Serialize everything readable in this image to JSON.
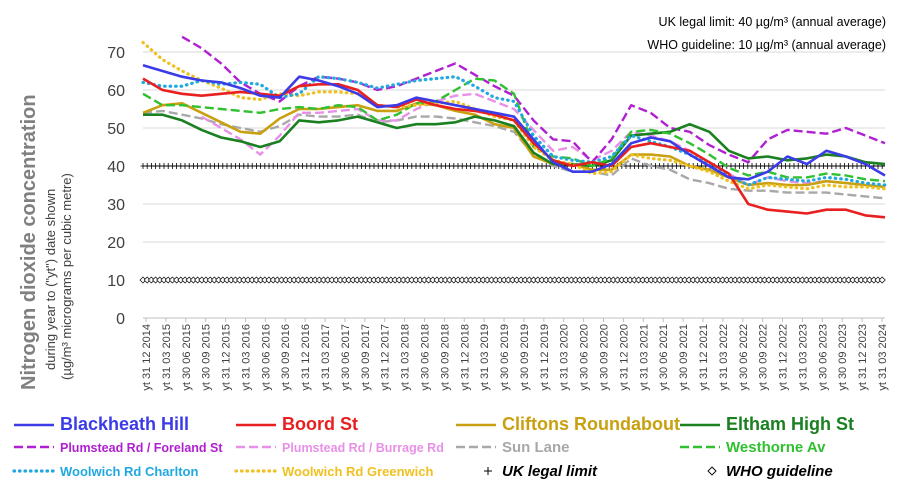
{
  "annotations": {
    "uk_limit": "UK legal limit:  40 µg/m³  (annual average)",
    "who_guideline": "WHO guideline:  10 µg/m³  (annual average)"
  },
  "chart_data": {
    "type": "line",
    "title": "",
    "ylabel_main": "Nitrogen dioxide concentration",
    "ylabel_sub1": "during year to (\"yt\") date shown",
    "ylabel_sub2": "(µg/m³ micrograms per cubic metre)",
    "xlabel": "",
    "ylim": [
      0,
      75
    ],
    "yticks": [
      0,
      10,
      20,
      30,
      40,
      50,
      60,
      70
    ],
    "grid": "horizontal",
    "legend_position": "bottom",
    "x_start": "31 12 2014",
    "x_end": "30 06 2024",
    "x_tick_labels": [
      "yt 31 12 2014",
      "yt 31 03 2015",
      "yt 30 06 2015",
      "yt 30 09 2015",
      "yt 31 12 2015",
      "yt 31 03 2016",
      "yt 30 06 2016",
      "yt 30 09 2016",
      "yt 31 12 2016",
      "yt 31 03 2017",
      "yt 30 06 2017",
      "yt 30 09 2017",
      "yt 31 12 2017",
      "yt 31 03 2018",
      "yt 30 06 2018",
      "yt 30 09 2018",
      "yt 31 12 2018",
      "yt 31 03 2019",
      "yt 30 06 2019",
      "yt 30 09 2019",
      "yt 31 12 2019",
      "yt 31 03 2020",
      "yt 30 06 2020",
      "yt 30 09 2020",
      "yt 31 12 2020",
      "yt 31 03 2021",
      "yt 30 06 2021",
      "yt 30 09 2021",
      "yt 31 12 2021",
      "yt 31 03 2022",
      "yt 30 06 2022",
      "yt 30 09 2022",
      "yt 31 12 2022",
      "yt 31 03 2023",
      "yt 30 06 2023",
      "yt 30 09 2023",
      "yt 31 12 2023",
      "yt 31 03 2024"
    ],
    "series": [
      {
        "name": "Blackheath Hill",
        "color": "#3B3BE8",
        "style": "solid",
        "legend_color": "#3B3BE8",
        "values": [
          66.5,
          65,
          63.5,
          62.5,
          62,
          60.5,
          58.5,
          58,
          63.5,
          62.5,
          61,
          59,
          55.5,
          56,
          58,
          57,
          56,
          55,
          54,
          53,
          47,
          41,
          38.5,
          38.5,
          40.5,
          46,
          47.5,
          46.5,
          43,
          40,
          37,
          36.5,
          38.5,
          42.5,
          40.5,
          44,
          42.5,
          40.5,
          37.5
        ]
      },
      {
        "name": "Boord St",
        "color": "#E82020",
        "style": "solid",
        "legend_color": "#E82020",
        "values": [
          63,
          60,
          59,
          58.5,
          59,
          59.5,
          59,
          58.5,
          61,
          61.5,
          61.5,
          60,
          56,
          55.5,
          57.5,
          56,
          55,
          54.5,
          53.5,
          52,
          46,
          41.5,
          40,
          41,
          40,
          45,
          46,
          45,
          44,
          41,
          38,
          30,
          28.5,
          28,
          27.5,
          28.5,
          28.5,
          27,
          26.5
        ]
      },
      {
        "name": "Cliftons Roundabout",
        "color": "#C8A010",
        "style": "solid",
        "legend_color": "#C8A010",
        "values": [
          54,
          56,
          56.5,
          54,
          51.5,
          49,
          48.5,
          52.5,
          55,
          55,
          55.5,
          56,
          54.5,
          54.5,
          56.5,
          56,
          54.5,
          53.5,
          51,
          50,
          42.5,
          40.5,
          40.5,
          39,
          39,
          43,
          43,
          42.5,
          40,
          39,
          37,
          35,
          35.5,
          35,
          35,
          36,
          35.5,
          35,
          34.5
        ]
      },
      {
        "name": "Eltham High St",
        "color": "#1A8020",
        "style": "solid",
        "legend_color": "#1A8020",
        "values": [
          53.5,
          53.5,
          52,
          49.5,
          47.5,
          46.5,
          45,
          46.5,
          52,
          51.5,
          52,
          53,
          51.5,
          50,
          51,
          51,
          51.5,
          53,
          52,
          50.5,
          43.5,
          40.5,
          40.5,
          40,
          41.5,
          48,
          48.5,
          49,
          51,
          49,
          44,
          42,
          42.5,
          41.5,
          42,
          43,
          42.5,
          41,
          40.5
        ]
      },
      {
        "name": "Plumstead Rd / Foreland St",
        "color": "#B020D0",
        "style": "dash",
        "legend_color": "#B020D0",
        "values": [
          null,
          null,
          74,
          71,
          67,
          62,
          59,
          57,
          61,
          63.5,
          63,
          62,
          60,
          61,
          63,
          65,
          67,
          64,
          61,
          58.5,
          52,
          47,
          46.5,
          41,
          47,
          56,
          54,
          50,
          49,
          45.5,
          43,
          41,
          47,
          49.5,
          49,
          48.5,
          50,
          48,
          46
        ]
      },
      {
        "name": "Plumstead Rd / Burrage Rd",
        "color": "#E890E8",
        "style": "dash",
        "legend_color": "#E890E8",
        "values": [
          null,
          null,
          null,
          53,
          50,
          47,
          43,
          48,
          54,
          54,
          54.5,
          55,
          52,
          52,
          55,
          57,
          58.5,
          59,
          57,
          55,
          49.5,
          44,
          45,
          41.5,
          44,
          49,
          48,
          46.5,
          44,
          41,
          38,
          35,
          37,
          36,
          35.5,
          36,
          35.5,
          35,
          34.5
        ]
      },
      {
        "name": "Sun Lane",
        "color": "#A8A8A8",
        "style": "dash",
        "legend_color": "#A8A8A8",
        "values": [
          54,
          54.5,
          53.5,
          52.5,
          51,
          50,
          49,
          50.5,
          53.5,
          53,
          53,
          53.5,
          51.5,
          52,
          53,
          53,
          52.5,
          51.5,
          50.5,
          49,
          43,
          40,
          38.5,
          38.5,
          37.5,
          42,
          40,
          39,
          36.5,
          35.5,
          34,
          33.5,
          33.5,
          33,
          33,
          33,
          32.5,
          32,
          31.5
        ]
      },
      {
        "name": "Westhorne Av",
        "color": "#30C030",
        "style": "dash",
        "legend_color": "#30C030",
        "values": [
          59,
          56,
          56,
          55.5,
          55,
          54.5,
          54,
          55,
          55.5,
          55,
          56,
          55.5,
          52,
          53.5,
          56.5,
          57,
          60,
          63,
          62.5,
          59,
          45,
          42.5,
          42,
          40,
          42,
          49,
          49.5,
          48.5,
          46,
          43,
          39.5,
          37.5,
          38.5,
          37,
          37,
          38,
          37.5,
          36.5,
          36
        ]
      },
      {
        "name": "Woolwich Rd Charlton",
        "color": "#20A8E0",
        "style": "dot",
        "legend_color": "#20A8E0",
        "values": [
          62,
          61,
          61,
          62.5,
          61.5,
          62,
          61.5,
          58,
          59,
          63.5,
          63,
          62,
          60.5,
          61.5,
          62.5,
          63,
          63.5,
          61,
          58,
          57,
          48,
          42.5,
          41.5,
          41,
          42.5,
          48,
          46.5,
          45,
          43,
          40.5,
          37.5,
          35,
          37,
          36.5,
          36,
          37,
          36.5,
          35.5,
          35
        ]
      },
      {
        "name": "Woolwich Rd Greenwich",
        "color": "#F0C020",
        "style": "dot",
        "legend_color": "#F0C020",
        "values": [
          72.5,
          68,
          65,
          62.5,
          60.5,
          58,
          57.5,
          59,
          58.5,
          59.5,
          59.5,
          59,
          56,
          55.5,
          56,
          56.5,
          57,
          55,
          53,
          52,
          45,
          41.5,
          40.5,
          38,
          38.5,
          43,
          42,
          41.5,
          40,
          38.5,
          36,
          34,
          35,
          34.5,
          34,
          35,
          34.5,
          34.5,
          34
        ]
      },
      {
        "name": "UK legal limit",
        "color": "#000000",
        "style": "plus",
        "legend_color": "#000000",
        "constant": 40
      },
      {
        "name": "WHO guideline",
        "color": "#000000",
        "style": "diamond",
        "legend_color": "#000000",
        "constant": 10
      }
    ]
  }
}
